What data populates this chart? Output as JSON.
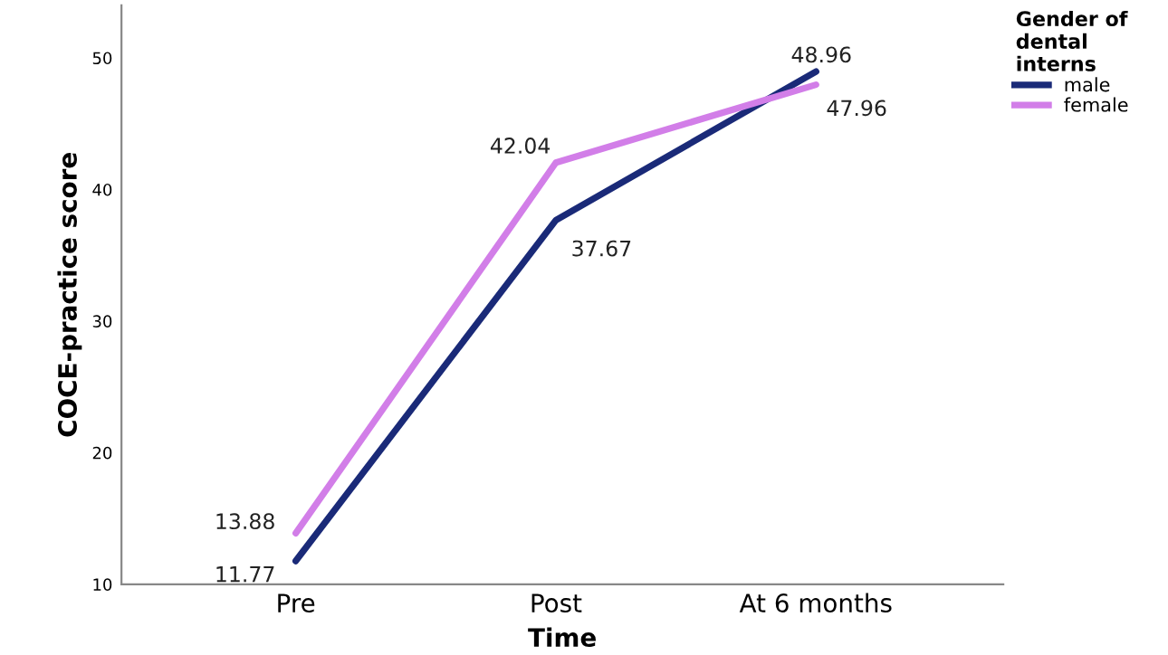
{
  "chart_data": {
    "type": "line",
    "xlabel": "Time",
    "ylabel": "COCE-practice score",
    "legend_title": "Gender of\ndental\ninterns",
    "categories": [
      "Pre",
      "Post",
      "At 6 months"
    ],
    "series": [
      {
        "name": "male",
        "color": "#1a2a78",
        "values": [
          11.77,
          37.67,
          48.96
        ]
      },
      {
        "name": "female",
        "color": "#d27ee8",
        "values": [
          13.88,
          42.04,
          47.96
        ]
      }
    ],
    "ylim": [
      10,
      54
    ],
    "yticks": [
      10,
      20,
      30,
      40,
      50
    ],
    "grid": false,
    "legend": "top right",
    "marker": "none",
    "line_style": "solid",
    "data_labels": true
  }
}
